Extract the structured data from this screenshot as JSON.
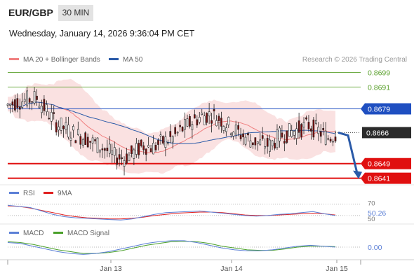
{
  "header": {
    "pair": "EUR/GBP",
    "timeframe": "30 MIN",
    "datetime": "Wednesday, January 14, 2026 9:36:04 PM CET"
  },
  "legend": {
    "main": [
      {
        "label": "MA 20 + Bollinger Bands",
        "color": "#f08080"
      },
      {
        "label": "MA 50",
        "color": "#2a5aa8"
      }
    ],
    "rsi": [
      {
        "label": "RSI",
        "color": "#5b7fd6"
      },
      {
        "label": "9MA",
        "color": "#e02020"
      }
    ],
    "macd": [
      {
        "label": "MACD",
        "color": "#5b7fd6"
      },
      {
        "label": "MACD Signal",
        "color": "#4aa02a"
      }
    ]
  },
  "credit": "Research © 2026 Trading Central",
  "colors": {
    "green_level": "#5aa02c",
    "blue_level": "#1f4fc1",
    "red_level": "#e01010",
    "dark_badge": "#2b2b2b",
    "up_candle": "#ffffff",
    "down_candle": "#7a0a0a",
    "arrow": "#2a5aa8"
  },
  "chart_data": [
    {
      "type": "candlestick",
      "series": [
        {
          "name": "MA 20 + Bollinger Bands"
        },
        {
          "name": "MA 50"
        }
      ],
      "levels": [
        {
          "value": 0.8699,
          "label": "0.8699",
          "style": "green-line"
        },
        {
          "value": 0.8691,
          "label": "0.8691",
          "style": "green-line"
        },
        {
          "value": 0.8679,
          "label": "0.8679",
          "style": "blue-badge"
        },
        {
          "value": 0.8666,
          "label": "0.8666",
          "style": "dark-badge-current-price"
        },
        {
          "value": 0.8649,
          "label": "0.8649",
          "style": "red-badge"
        },
        {
          "value": 0.8641,
          "label": "0.8641",
          "style": "red-badge"
        }
      ],
      "close_path": [
        0.8681,
        0.8683,
        0.8684,
        0.8685,
        0.8678,
        0.8671,
        0.8668,
        0.8665,
        0.8663,
        0.866,
        0.8657,
        0.8653,
        0.8652,
        0.8655,
        0.8659,
        0.8658,
        0.8661,
        0.8663,
        0.8668,
        0.8672,
        0.8675,
        0.8676,
        0.8673,
        0.8669,
        0.8665,
        0.8662,
        0.866,
        0.8659,
        0.8664,
        0.8666,
        0.8668,
        0.867,
        0.8667,
        0.8663,
        0.8666
      ],
      "forecast_arrow": {
        "from": 0.8666,
        "to": 0.8641
      },
      "ylim": [
        0.8637,
        0.8703
      ],
      "x_labels": [
        "Jan 13",
        "Jan 14",
        "Jan 15"
      ]
    },
    {
      "type": "line",
      "name": "RSI",
      "current_label": "50.26",
      "levels": [
        70,
        50
      ],
      "level_labels": [
        "70",
        "50"
      ],
      "values": [
        68,
        66,
        64,
        58,
        52,
        48,
        46,
        45,
        44,
        43,
        42,
        44,
        48,
        52,
        55,
        56,
        57,
        58,
        56,
        54,
        52,
        50,
        49,
        50,
        52,
        53,
        55,
        57,
        53,
        50
      ],
      "ma_values": [
        67,
        66,
        63,
        59,
        55,
        51,
        48,
        46,
        45,
        44,
        44,
        45,
        47,
        50,
        52,
        54,
        55,
        56,
        56,
        55,
        53,
        51,
        50,
        50,
        51,
        52,
        53,
        54,
        53,
        51
      ],
      "ylim": [
        40,
        72
      ]
    },
    {
      "type": "line",
      "name": "MACD",
      "zero_label": "0.00",
      "values": [
        0.5,
        0.4,
        0.1,
        -0.2,
        -0.5,
        -0.7,
        -0.8,
        -0.7,
        -0.5,
        -0.2,
        0.1,
        0.4,
        0.6,
        0.7,
        0.7,
        0.5,
        0.2,
        -0.1,
        -0.3,
        -0.4,
        -0.4,
        -0.3,
        -0.1,
        0.1,
        0.2,
        0.1,
        0.0
      ],
      "signal_values": [
        0.6,
        0.5,
        0.3,
        0.0,
        -0.3,
        -0.5,
        -0.7,
        -0.7,
        -0.6,
        -0.4,
        -0.1,
        0.2,
        0.4,
        0.6,
        0.65,
        0.6,
        0.4,
        0.1,
        -0.1,
        -0.3,
        -0.35,
        -0.35,
        -0.2,
        0.0,
        0.1,
        0.1,
        0.05
      ],
      "ylim": [
        -1,
        1
      ]
    }
  ]
}
